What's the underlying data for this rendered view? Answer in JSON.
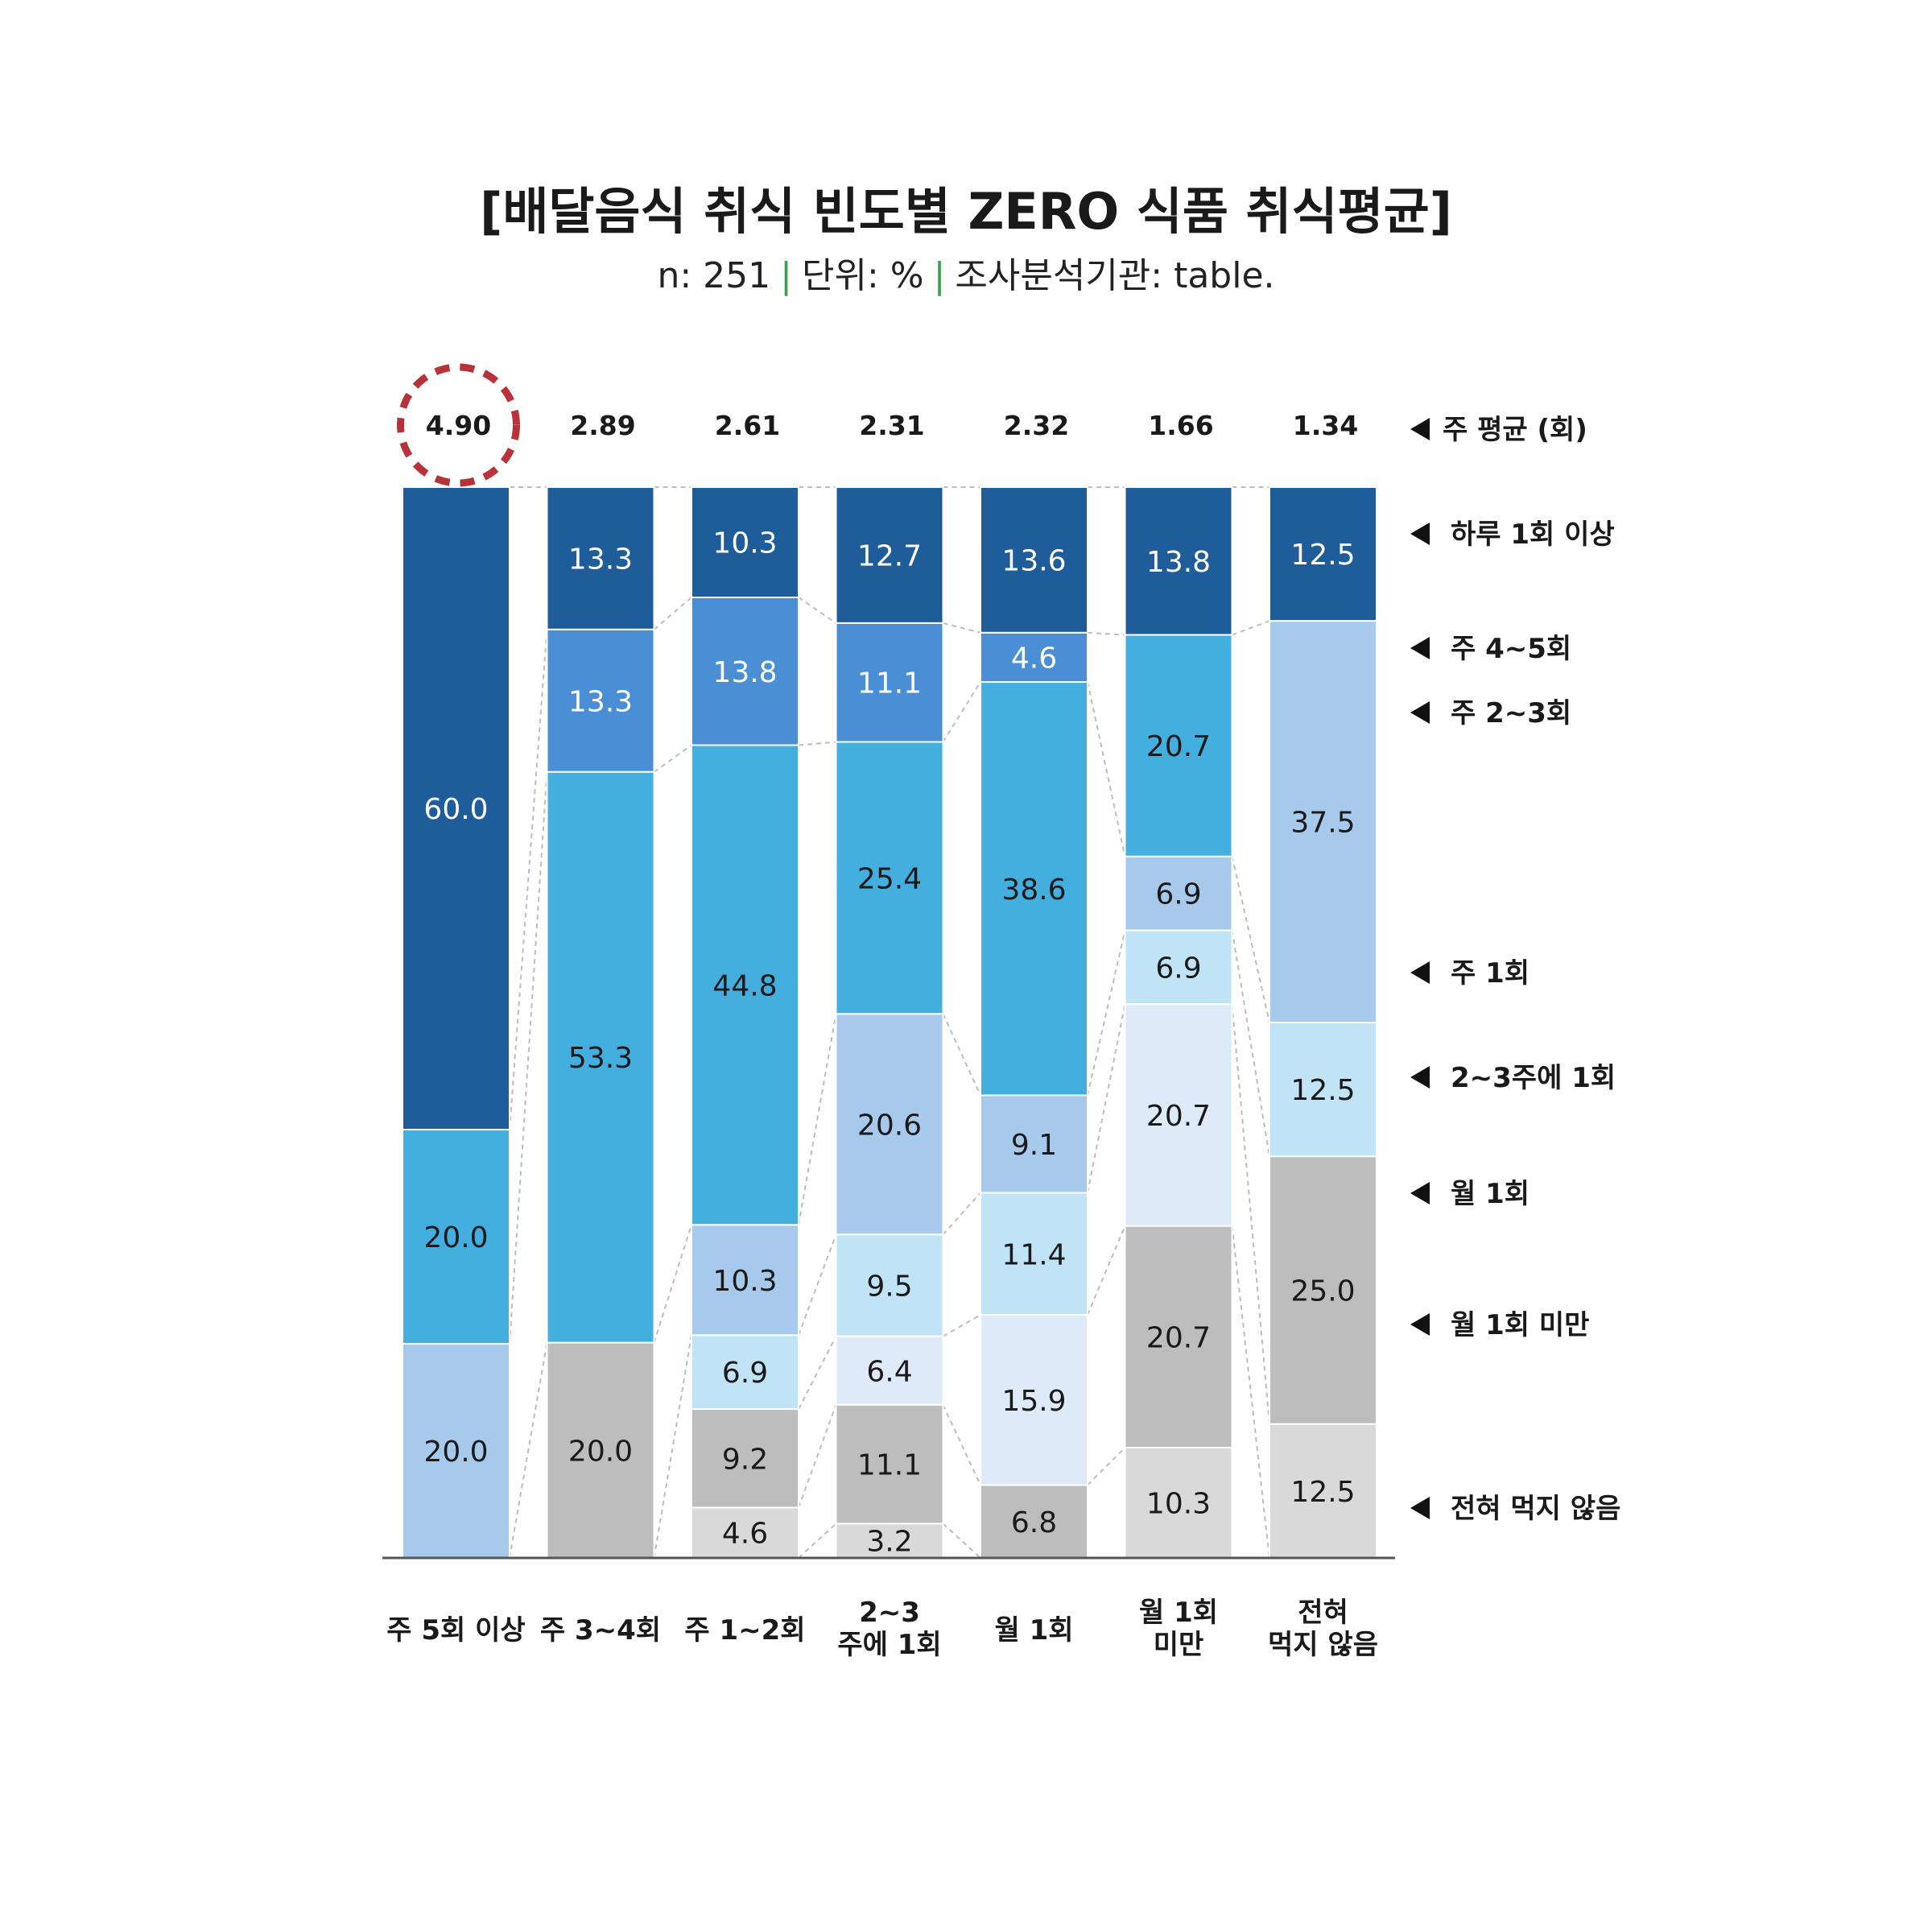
{
  "header": {
    "title": "[배달음식 취식 빈도별 ZERO 식품 취식평균]",
    "subtitle_n": "n: 251",
    "subtitle_unit": "단위: %",
    "subtitle_source": "조사분석기관: table.",
    "separator_color": "#3aa34a"
  },
  "average_legend": "주 평균 (회)",
  "highlight_color": "#b8323a",
  "chart_data": {
    "type": "bar",
    "stacked": true,
    "title": "[배달음식 취식 빈도별 ZERO 식품 취식평균]",
    "categories": [
      "주 5회 이상",
      "주 3~4회",
      "주 1~2회",
      "2~3\n주에 1회",
      "월 1회",
      "월 1회\n미만",
      "전혀\n먹지 않음"
    ],
    "weekly_average": [
      4.9,
      2.89,
      2.61,
      2.31,
      2.32,
      1.66,
      1.34
    ],
    "weekly_average_labels": [
      "4.90",
      "2.89",
      "2.61",
      "2.31",
      "2.32",
      "1.66",
      "1.34"
    ],
    "highlighted_category_index": 0,
    "ylim": [
      0,
      100
    ],
    "series": [
      {
        "name": "하루 1회 이상",
        "color": "#1f5c9a",
        "text_color": "#ffffff",
        "values": [
          60.0,
          13.3,
          10.3,
          12.7,
          13.6,
          13.8,
          12.5
        ]
      },
      {
        "name": "주 4~5회",
        "color": "#4a8fd6",
        "text_color": "#ffffff",
        "values": [
          null,
          13.3,
          13.8,
          11.1,
          4.6,
          null,
          null
        ]
      },
      {
        "name": "주 2~3회",
        "color": "#44aedf",
        "text_color": "#1a1a1a",
        "values": [
          20.0,
          53.3,
          44.8,
          25.4,
          38.6,
          20.7,
          null
        ]
      },
      {
        "name": "주 1회",
        "color": "#a7c9ec",
        "text_color": "#1a1a1a",
        "values": [
          20.0,
          null,
          10.3,
          20.6,
          9.1,
          6.9,
          37.5
        ]
      },
      {
        "name": "2~3주에 1회",
        "color": "#c0e4f5",
        "text_color": "#1a1a1a",
        "values": [
          null,
          null,
          6.9,
          9.5,
          11.4,
          6.9,
          12.5
        ]
      },
      {
        "name": "월 1회",
        "color": "#deeaf7",
        "text_color": "#1a1a1a",
        "values": [
          null,
          null,
          null,
          6.4,
          15.9,
          20.7,
          null
        ]
      },
      {
        "name": "월 1회 미만",
        "color": "#bdbdbd",
        "text_color": "#1a1a1a",
        "values": [
          null,
          20.0,
          9.2,
          11.1,
          6.8,
          20.7,
          25.0
        ]
      },
      {
        "name": "전혀 먹지 않음",
        "color": "#d9d9d9",
        "text_color": "#1a1a1a",
        "values": [
          null,
          null,
          4.6,
          3.2,
          null,
          10.3,
          12.5
        ]
      }
    ]
  }
}
